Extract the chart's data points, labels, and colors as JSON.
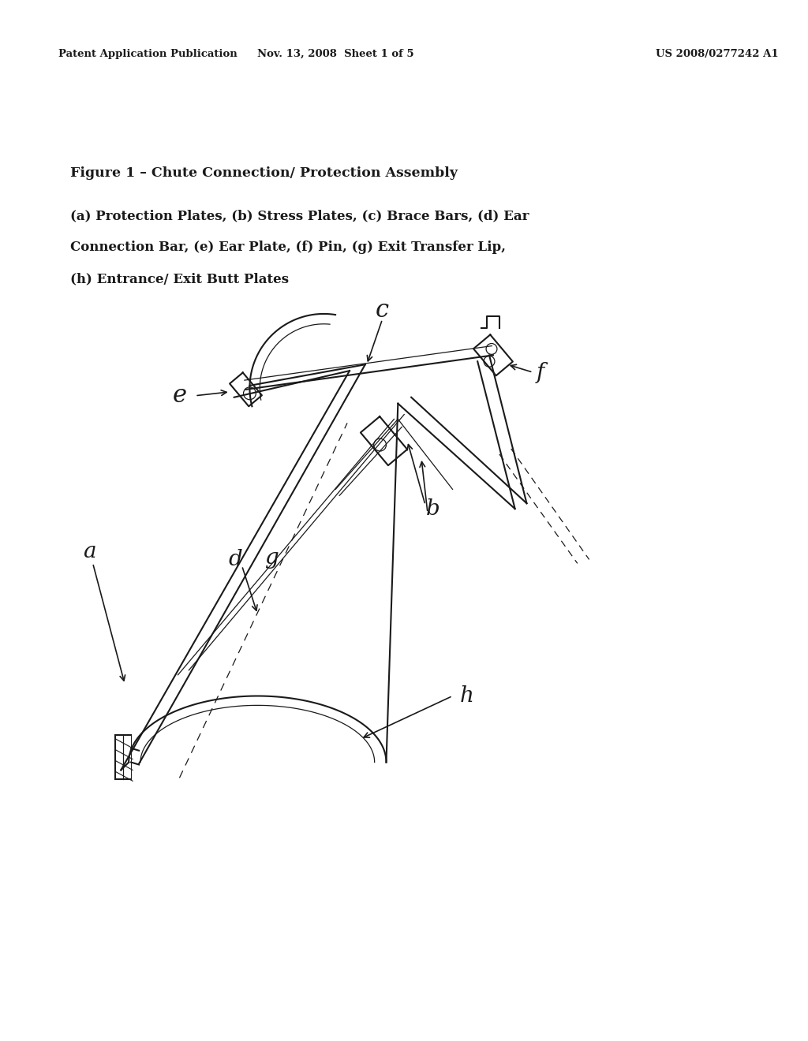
{
  "background_color": "#ffffff",
  "header_left": "Patent Application Publication",
  "header_middle": "Nov. 13, 2008  Sheet 1 of 5",
  "header_right": "US 2008/0277242 A1",
  "figure_title": "Figure 1 – Chute Connection/ Protection Assembly",
  "caption_line1": "(a) Protection Plates, (b) Stress Plates, (c) Brace Bars, (d) Ear",
  "caption_line2": "Connection Bar, (e) Ear Plate, (f) Pin, (g) Exit Transfer Lip,",
  "caption_line3": "(h) Entrance/ Exit Butt Plates",
  "text_color": "#1a1a1a"
}
